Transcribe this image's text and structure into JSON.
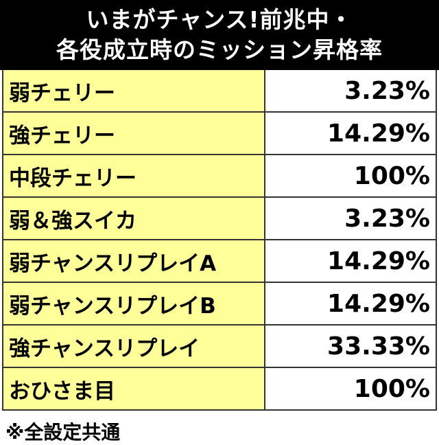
{
  "title": {
    "line1": "いまがチャンス!前兆中・",
    "line2": "各役成立時のミッション昇格率"
  },
  "rows": [
    {
      "label": "弱チェリー",
      "value": "3.23%"
    },
    {
      "label": "強チェリー",
      "value": "14.29%"
    },
    {
      "label": "中段チェリー",
      "value": "100%"
    },
    {
      "label": "弱＆強スイカ",
      "value": "3.23%"
    },
    {
      "label": "弱チャンスリプレイA",
      "value": "14.29%"
    },
    {
      "label": "弱チャンスリプレイB",
      "value": "14.29%"
    },
    {
      "label": "強チャンスリプレイ",
      "value": "33.33%"
    },
    {
      "label": "おひさま目",
      "value": "100%"
    }
  ],
  "footnote": "※全設定共通",
  "colors": {
    "header_bg": "#000000",
    "header_text": "#ffffff",
    "label_bg": "#ffff99",
    "value_bg": "#ffffff"
  }
}
